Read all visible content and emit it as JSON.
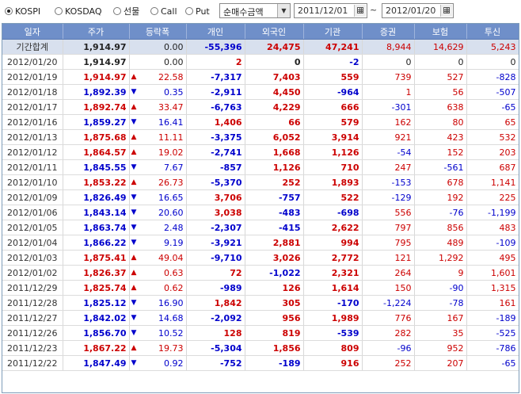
{
  "toolbar": {
    "radios": [
      {
        "label": "KOSPI",
        "selected": true
      },
      {
        "label": "KOSDAQ",
        "selected": false
      },
      {
        "label": "선물",
        "selected": false
      },
      {
        "label": "Call",
        "selected": false
      },
      {
        "label": "Put",
        "selected": false
      }
    ],
    "select_value": "순매수금액",
    "date_from": "2011/12/01",
    "tilde": "~",
    "date_to": "2012/01/20"
  },
  "table": {
    "headers": [
      "일자",
      "주가",
      "등락폭",
      "개인",
      "외국인",
      "기관",
      "증권",
      "보험",
      "투신"
    ],
    "summary": {
      "date": "기간합계",
      "price": "1,914.97",
      "change": "0.00",
      "dir": "",
      "indiv": "-55,396",
      "foreign": "24,475",
      "inst": "47,241",
      "sec": "8,944",
      "ins": "14,629",
      "trust": "5,243"
    },
    "rows": [
      {
        "date": "2012/01/20",
        "price": "1,914.97",
        "change": "0.00",
        "dir": "",
        "indiv": "2",
        "foreign": "0",
        "inst": "-2",
        "sec": "0",
        "ins": "0",
        "trust": "0"
      },
      {
        "date": "2012/01/19",
        "price": "1,914.97",
        "change": "22.58",
        "dir": "up",
        "indiv": "-7,317",
        "foreign": "7,403",
        "inst": "559",
        "sec": "739",
        "ins": "527",
        "trust": "-828"
      },
      {
        "date": "2012/01/18",
        "price": "1,892.39",
        "change": "0.35",
        "dir": "down",
        "indiv": "-2,911",
        "foreign": "4,450",
        "inst": "-964",
        "sec": "1",
        "ins": "56",
        "trust": "-507"
      },
      {
        "date": "2012/01/17",
        "price": "1,892.74",
        "change": "33.47",
        "dir": "up",
        "indiv": "-6,763",
        "foreign": "4,229",
        "inst": "666",
        "sec": "-301",
        "ins": "638",
        "trust": "-65"
      },
      {
        "date": "2012/01/16",
        "price": "1,859.27",
        "change": "16.41",
        "dir": "down",
        "indiv": "1,406",
        "foreign": "66",
        "inst": "579",
        "sec": "162",
        "ins": "80",
        "trust": "65"
      },
      {
        "date": "2012/01/13",
        "price": "1,875.68",
        "change": "11.11",
        "dir": "up",
        "indiv": "-3,375",
        "foreign": "6,052",
        "inst": "3,914",
        "sec": "921",
        "ins": "423",
        "trust": "532"
      },
      {
        "date": "2012/01/12",
        "price": "1,864.57",
        "change": "19.02",
        "dir": "up",
        "indiv": "-2,741",
        "foreign": "1,668",
        "inst": "1,126",
        "sec": "-54",
        "ins": "152",
        "trust": "203"
      },
      {
        "date": "2012/01/11",
        "price": "1,845.55",
        "change": "7.67",
        "dir": "down",
        "indiv": "-857",
        "foreign": "1,126",
        "inst": "710",
        "sec": "247",
        "ins": "-561",
        "trust": "687"
      },
      {
        "date": "2012/01/10",
        "price": "1,853.22",
        "change": "26.73",
        "dir": "up",
        "indiv": "-5,370",
        "foreign": "252",
        "inst": "1,893",
        "sec": "-153",
        "ins": "678",
        "trust": "1,141"
      },
      {
        "date": "2012/01/09",
        "price": "1,826.49",
        "change": "16.65",
        "dir": "down",
        "indiv": "3,706",
        "foreign": "-757",
        "inst": "522",
        "sec": "-129",
        "ins": "192",
        "trust": "225"
      },
      {
        "date": "2012/01/06",
        "price": "1,843.14",
        "change": "20.60",
        "dir": "down",
        "indiv": "3,038",
        "foreign": "-483",
        "inst": "-698",
        "sec": "556",
        "ins": "-76",
        "trust": "-1,199"
      },
      {
        "date": "2012/01/05",
        "price": "1,863.74",
        "change": "2.48",
        "dir": "down",
        "indiv": "-2,307",
        "foreign": "-415",
        "inst": "2,622",
        "sec": "797",
        "ins": "856",
        "trust": "483"
      },
      {
        "date": "2012/01/04",
        "price": "1,866.22",
        "change": "9.19",
        "dir": "down",
        "indiv": "-3,921",
        "foreign": "2,881",
        "inst": "994",
        "sec": "795",
        "ins": "489",
        "trust": "-109"
      },
      {
        "date": "2012/01/03",
        "price": "1,875.41",
        "change": "49.04",
        "dir": "up",
        "indiv": "-9,710",
        "foreign": "3,026",
        "inst": "2,772",
        "sec": "121",
        "ins": "1,292",
        "trust": "495"
      },
      {
        "date": "2012/01/02",
        "price": "1,826.37",
        "change": "0.63",
        "dir": "up",
        "indiv": "72",
        "foreign": "-1,022",
        "inst": "2,321",
        "sec": "264",
        "ins": "9",
        "trust": "1,601"
      },
      {
        "date": "2011/12/29",
        "price": "1,825.74",
        "change": "0.62",
        "dir": "up",
        "indiv": "-989",
        "foreign": "126",
        "inst": "1,614",
        "sec": "150",
        "ins": "-90",
        "trust": "1,315"
      },
      {
        "date": "2011/12/28",
        "price": "1,825.12",
        "change": "16.90",
        "dir": "down",
        "indiv": "1,842",
        "foreign": "305",
        "inst": "-170",
        "sec": "-1,224",
        "ins": "-78",
        "trust": "161"
      },
      {
        "date": "2011/12/27",
        "price": "1,842.02",
        "change": "14.68",
        "dir": "down",
        "indiv": "-2,092",
        "foreign": "956",
        "inst": "1,989",
        "sec": "776",
        "ins": "167",
        "trust": "-189"
      },
      {
        "date": "2011/12/26",
        "price": "1,856.70",
        "change": "10.52",
        "dir": "down",
        "indiv": "128",
        "foreign": "819",
        "inst": "-539",
        "sec": "282",
        "ins": "35",
        "trust": "-525"
      },
      {
        "date": "2011/12/23",
        "price": "1,867.22",
        "change": "19.73",
        "dir": "up",
        "indiv": "-5,304",
        "foreign": "1,856",
        "inst": "809",
        "sec": "-96",
        "ins": "952",
        "trust": "-786"
      },
      {
        "date": "2011/12/22",
        "price": "1,847.49",
        "change": "0.92",
        "dir": "down",
        "indiv": "-752",
        "foreign": "-189",
        "inst": "916",
        "sec": "252",
        "ins": "207",
        "trust": "-65"
      }
    ]
  },
  "colors": {
    "up": "#cc0000",
    "down": "#0000cc",
    "neutral": "#222222",
    "header_bg": "#6f8fc9",
    "summary_bg": "#d8e0ee"
  },
  "icons": {
    "up": "triangle-up-icon",
    "down": "triangle-down-icon",
    "calendar": "calendar-icon",
    "dropdown": "chevron-down-icon"
  }
}
